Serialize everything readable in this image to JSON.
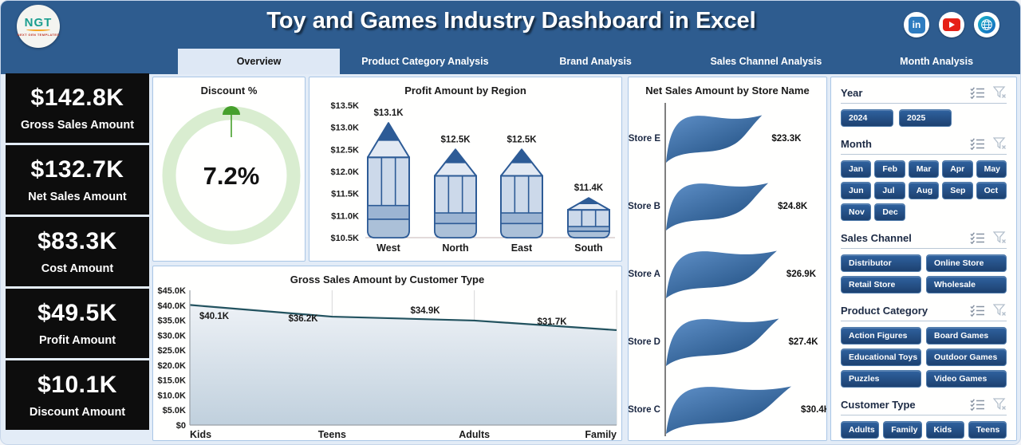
{
  "header": {
    "title": "Toy and Games Industry Dashboard in Excel",
    "logo_text": "NGT",
    "logo_subtext": "NEXT GEN TEMPLATES",
    "social_icons": [
      "linkedin",
      "youtube",
      "website"
    ]
  },
  "tabs": [
    {
      "label": "Overview",
      "active": true
    },
    {
      "label": "Product Category Analysis",
      "active": false
    },
    {
      "label": "Brand Analysis",
      "active": false
    },
    {
      "label": "Sales Channel Analysis",
      "active": false
    },
    {
      "label": "Month Analysis",
      "active": false
    }
  ],
  "kpis": [
    {
      "value": "$142.8K",
      "label": "Gross Sales Amount"
    },
    {
      "value": "$132.7K",
      "label": "Net Sales Amount"
    },
    {
      "value": "$83.3K",
      "label": "Cost Amount"
    },
    {
      "value": "$49.5K",
      "label": "Profit Amount"
    },
    {
      "value": "$10.1K",
      "label": "Discount Amount"
    }
  ],
  "chart_data": [
    {
      "type": "pie",
      "variant": "donut-gauge",
      "title": "Discount %",
      "value_pct": 7.2,
      "value_label": "7.2%",
      "ring_color": "#d9edd0",
      "marker_color": "#46a02c"
    },
    {
      "type": "bar",
      "variant": "pencil",
      "title": "Profit Amount by Region",
      "categories": [
        "West",
        "North",
        "East",
        "South"
      ],
      "values": [
        13.1,
        12.5,
        12.5,
        11.4
      ],
      "data_labels": [
        "$13.1K",
        "$12.5K",
        "$12.5K",
        "$11.4K"
      ],
      "yticks": [
        "$13.5K",
        "$13.0K",
        "$12.5K",
        "$12.0K",
        "$11.5K",
        "$11.0K",
        "$10.5K"
      ],
      "ylim": [
        10.5,
        13.5
      ],
      "grid": false
    },
    {
      "type": "area",
      "title": "Gross Sales Amount by Customer Type",
      "categories": [
        "Kids",
        "Teens",
        "Adults",
        "Family"
      ],
      "values": [
        40.1,
        36.2,
        34.9,
        31.7
      ],
      "data_labels": [
        "$40.1K",
        "$36.2K",
        "$34.9K",
        "$31.7K"
      ],
      "yticks": [
        "$45.0K",
        "$40.0K",
        "$35.0K",
        "$30.0K",
        "$25.0K",
        "$20.0K",
        "$15.0K",
        "$10.0K",
        "$5.0K",
        "$0"
      ],
      "ylim": [
        0,
        45
      ],
      "grid": "vertical"
    },
    {
      "type": "bar",
      "variant": "wave-horizontal",
      "title": "Net Sales Amount by Store Name",
      "categories": [
        "Store E",
        "Store B",
        "Store A",
        "Store D",
        "Store C"
      ],
      "values": [
        23.3,
        24.8,
        26.9,
        27.4,
        30.4
      ],
      "data_labels": [
        "$23.3K",
        "$24.8K",
        "$26.9K",
        "$27.4K",
        "$30.4K"
      ],
      "bar_color_top": "#5f90c8",
      "bar_color_bottom": "#1e4c7e"
    }
  ],
  "slicers": [
    {
      "title": "Year",
      "layout": "year",
      "items": [
        "2024",
        "2025"
      ]
    },
    {
      "title": "Month",
      "layout": "month",
      "items": [
        "Jan",
        "Feb",
        "Mar",
        "Apr",
        "May",
        "Jun",
        "Jul",
        "Aug",
        "Sep",
        "Oct",
        "Nov",
        "Dec"
      ]
    },
    {
      "title": "Sales Channel",
      "layout": "two-col",
      "items": [
        "Distributor",
        "Online Store",
        "Retail Store",
        "Wholesale"
      ]
    },
    {
      "title": "Product Category",
      "layout": "two-col",
      "items": [
        "Action Figures",
        "Board Games",
        "Educational Toys",
        "Outdoor Games",
        "Puzzles",
        "Video Games"
      ]
    },
    {
      "title": "Customer Type",
      "layout": "four-col",
      "items": [
        "Adults",
        "Family",
        "Kids",
        "Teens"
      ]
    }
  ],
  "colors": {
    "header_blue": "#2e5c8f",
    "active_tab_bg": "#dee8f5",
    "kpi_bg": "#0d0d0d",
    "panel_border": "#a9c6e6",
    "slicer_button": "#1d4170",
    "pencil_outline": "#2d5b96",
    "pencil_body": "#ccd9ea",
    "area_line": "#22525f",
    "donut_ring": "#d9edd0",
    "donut_marker": "#46a02c"
  }
}
